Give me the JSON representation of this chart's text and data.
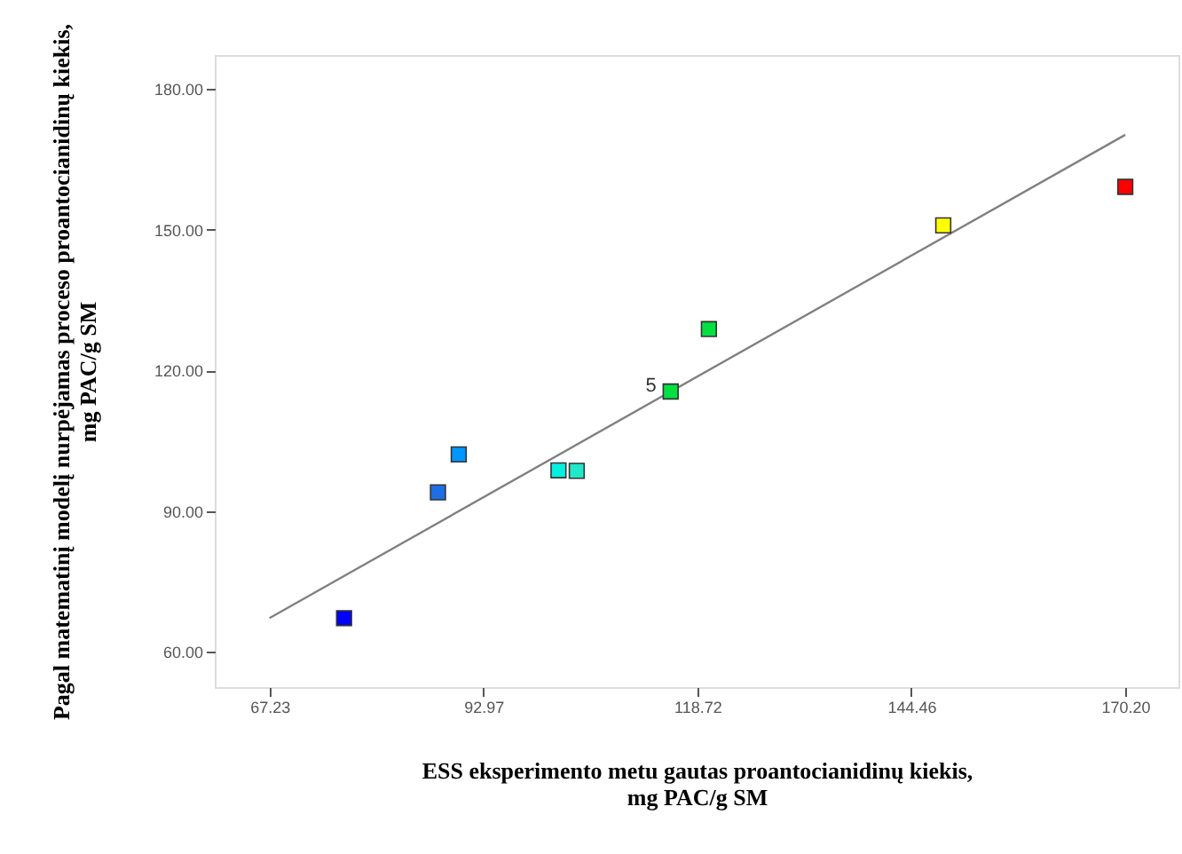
{
  "chart_data": {
    "type": "scatter",
    "xlabel": "ESS eksperimento metu gautas proantocianidinų kiekis,\nmg PAC/g SM",
    "ylabel": "Pagal matematinį modelį nurpėjamas proceso proantocianidinų kiekis,\nmg PAC/g SM",
    "xlim": [
      60.64,
      176.6
    ],
    "ylim": [
      52.5,
      187.2
    ],
    "xticks": [
      67.23,
      92.97,
      118.72,
      144.46,
      {
        "value": 170.2,
        "label": "170.20"
      }
    ],
    "yticks": [
      {
        "value": 60,
        "label": "60.00"
      },
      {
        "value": 90,
        "label": "90.00"
      },
      {
        "value": 120,
        "label": "120.00"
      },
      {
        "value": 150,
        "label": "150.00"
      },
      {
        "value": 180,
        "label": "180.00"
      }
    ],
    "grid": false,
    "legend": false,
    "series": [
      {
        "type": "line",
        "x": [
          67.23,
          170.2
        ],
        "values": [
          67.2,
          170.2
        ],
        "color": "#808080",
        "line_style": "solid"
      },
      {
        "marker": "square",
        "x": [
          76.2,
          87.5,
          90.0,
          102.0,
          104.2,
          115.5,
          120.1,
          148.3,
          170.2
        ],
        "values": [
          67.2,
          94.0,
          102.1,
          98.7,
          98.6,
          115.5,
          128.8,
          150.9,
          159.1
        ],
        "colors": [
          "#0000ff",
          "#1e6ee6",
          "#0096ff",
          "#00f0e0",
          "#20e8c8",
          "#00e040",
          "#00e040",
          "#ffff00",
          "#ff0000"
        ]
      }
    ],
    "annotations": [
      {
        "text": "5",
        "x": 115.5,
        "y": 115.5
      }
    ]
  }
}
